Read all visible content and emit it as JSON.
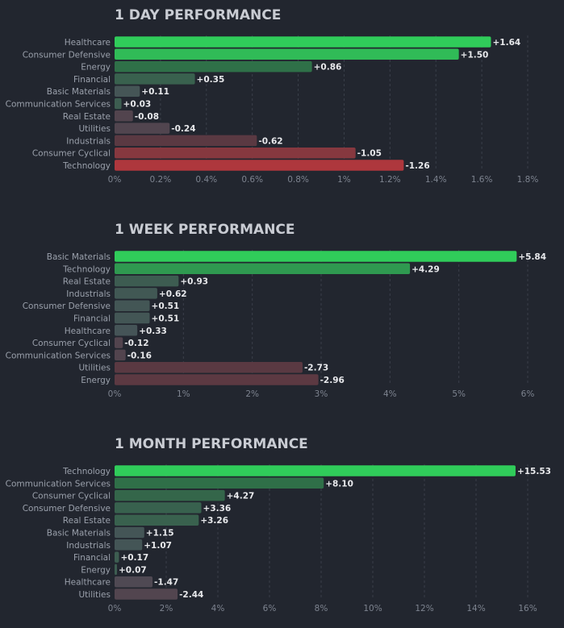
{
  "chart_data": [
    {
      "type": "bar",
      "orientation": "horizontal",
      "title": "1 DAY PERFORMANCE",
      "categories": [
        "Healthcare",
        "Consumer Defensive",
        "Energy",
        "Financial",
        "Basic Materials",
        "Communication Services",
        "Real Estate",
        "Utilities",
        "Industrials",
        "Consumer Cyclical",
        "Technology"
      ],
      "values": [
        1.64,
        1.5,
        0.86,
        0.35,
        0.11,
        0.03,
        -0.08,
        -0.24,
        -0.62,
        -1.05,
        -1.26
      ],
      "value_labels": [
        "+1.64",
        "+1.50",
        "+0.86",
        "+0.35",
        "+0.11",
        "+0.03",
        "-0.08",
        "-0.24",
        "-0.62",
        "-1.05",
        "-1.26"
      ],
      "xlim": [
        0,
        1.8
      ],
      "ticks": [
        0,
        0.2,
        0.4,
        0.6,
        0.8,
        1,
        1.2,
        1.4,
        1.6,
        1.8
      ],
      "tick_labels": [
        "0%",
        "0.2%",
        "0.4%",
        "0.6%",
        "0.8%",
        "1%",
        "1.2%",
        "1.4%",
        "1.6%",
        "1.8%"
      ],
      "bar_length": "absolute value",
      "grid": "vertical dashed"
    },
    {
      "type": "bar",
      "orientation": "horizontal",
      "title": "1 WEEK PERFORMANCE",
      "categories": [
        "Basic Materials",
        "Technology",
        "Real Estate",
        "Industrials",
        "Consumer Defensive",
        "Financial",
        "Healthcare",
        "Consumer Cyclical",
        "Communication Services",
        "Utilities",
        "Energy"
      ],
      "values": [
        5.84,
        4.29,
        0.93,
        0.62,
        0.51,
        0.51,
        0.33,
        -0.12,
        -0.16,
        -2.73,
        -2.96
      ],
      "value_labels": [
        "+5.84",
        "+4.29",
        "+0.93",
        "+0.62",
        "+0.51",
        "+0.51",
        "+0.33",
        "-0.12",
        "-0.16",
        "-2.73",
        "-2.96"
      ],
      "xlim": [
        0,
        6
      ],
      "ticks": [
        0,
        1,
        2,
        3,
        4,
        5,
        6
      ],
      "tick_labels": [
        "0%",
        "1%",
        "2%",
        "3%",
        "4%",
        "5%",
        "6%"
      ],
      "bar_length": "absolute value",
      "grid": "vertical dashed"
    },
    {
      "type": "bar",
      "orientation": "horizontal",
      "title": "1 MONTH PERFORMANCE",
      "categories": [
        "Technology",
        "Communication Services",
        "Consumer Cyclical",
        "Consumer Defensive",
        "Real Estate",
        "Basic Materials",
        "Industrials",
        "Financial",
        "Energy",
        "Healthcare",
        "Utilities"
      ],
      "values": [
        15.53,
        8.1,
        4.27,
        3.36,
        3.26,
        1.15,
        1.07,
        0.17,
        0.07,
        -1.47,
        -2.44
      ],
      "value_labels": [
        "+15.53",
        "+8.10",
        "+4.27",
        "+3.36",
        "+3.26",
        "+1.15",
        "+1.07",
        "+0.17",
        "+0.07",
        "-1.47",
        "-2.44"
      ],
      "xlim": [
        0,
        16
      ],
      "ticks": [
        0,
        2,
        4,
        6,
        8,
        10,
        12,
        14,
        16
      ],
      "tick_labels": [
        "0%",
        "2%",
        "4%",
        "6%",
        "8%",
        "10%",
        "12%",
        "14%",
        "16%"
      ],
      "bar_length": "absolute value",
      "grid": "vertical dashed"
    }
  ],
  "colors": {
    "background": "#22262f",
    "title": "#c9ccd3",
    "category_label": "#9aa0ab",
    "value_label": "#e8e9ec",
    "tick_label": "#7d838f",
    "grid": "#3a3f4a",
    "positive_strong": "#30cc5a",
    "positive_weak": "#2f6b47",
    "neutral": "#4a4f5a",
    "negative_weak": "#5a3942",
    "negative_strong": "#f63538"
  }
}
